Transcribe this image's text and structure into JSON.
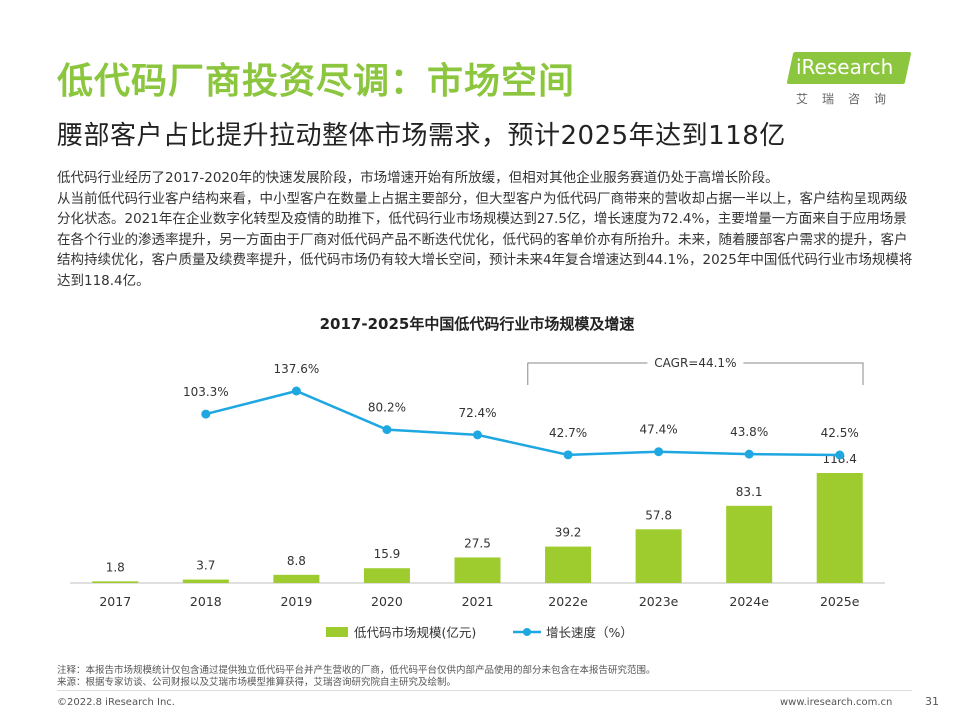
{
  "header": {
    "title": "低代码厂商投资尽调：市场空间",
    "subtitle": "腰部客户占比提升拉动整体市场需求，预计2025年达到118亿"
  },
  "logo": {
    "text": "iResearch",
    "sub": "艾瑞咨询"
  },
  "body": {
    "paragraph_1": "低代码行业经历了2017-2020年的快速发展阶段，市场增速开始有所放缓，但相对其他企业服务赛道仍处于高增长阶段。",
    "paragraph_2": "从当前低代码行业客户结构来看，中小型客户在数量上占据主要部分，但大型客户为低代码厂商带来的营收却占据一半以上，客户结构呈现两级分化状态。2021年在企业数字化转型及疫情的助推下，低代码行业市场规模达到27.5亿，增长速度为72.4%，主要增量一方面来自于应用场景在各个行业的渗透率提升，另一方面由于厂商对低代码产品不断迭代优化，低代码的客单价亦有所抬升。未来，随着腰部客户需求的提升，客户结构持续优化，客户质量及续费率提升，低代码市场仍有较大增长空间，预计未来4年复合增速达到44.1%，2025年中国低代码行业市场规模将达到118.4亿。"
  },
  "chart_data": {
    "type": "bar",
    "title": "2017-2025年中国低代码行业市场规模及增速",
    "categories": [
      "2017",
      "2018",
      "2019",
      "2020",
      "2021",
      "2022e",
      "2023e",
      "2024e",
      "2025e"
    ],
    "series": [
      {
        "name": "低代码市场规模(亿元)",
        "type": "bar",
        "values": [
          1.8,
          3.7,
          8.8,
          15.9,
          27.5,
          39.2,
          57.8,
          83.1,
          118.4
        ],
        "labels": [
          "1.8",
          "3.7",
          "8.8",
          "15.9",
          "27.5",
          "39.2",
          "57.8",
          "83.1",
          "118.4"
        ],
        "color": "#9ecb2e"
      },
      {
        "name": "增长速度（%）",
        "type": "line",
        "values": [
          null,
          103.3,
          137.6,
          80.2,
          72.4,
          42.7,
          47.4,
          43.8,
          42.5
        ],
        "labels": [
          "",
          "103.3%",
          "137.6%",
          "80.2%",
          "72.4%",
          "42.7%",
          "47.4%",
          "43.8%",
          "42.5%"
        ],
        "color": "#1ea7e1"
      }
    ],
    "annotation": "CAGR=44.1%",
    "annotation_span": [
      "2022e",
      "2025e"
    ],
    "legend_position": "bottom",
    "grid": false
  },
  "footer": {
    "note": "注释：本报告市场规模统计仅包含通过提供独立低代码平台并产生营收的厂商，低代码平台仅供内部产品使用的部分未包含在本报告研究范围。",
    "source": "来源：根据专家访谈、公司财报以及艾瑞市场模型推算获得，艾瑞咨询研究院自主研究及绘制。",
    "copyright": "©2022.8 iResearch Inc.",
    "website": "www.iresearch.com.cn",
    "page": "31"
  }
}
